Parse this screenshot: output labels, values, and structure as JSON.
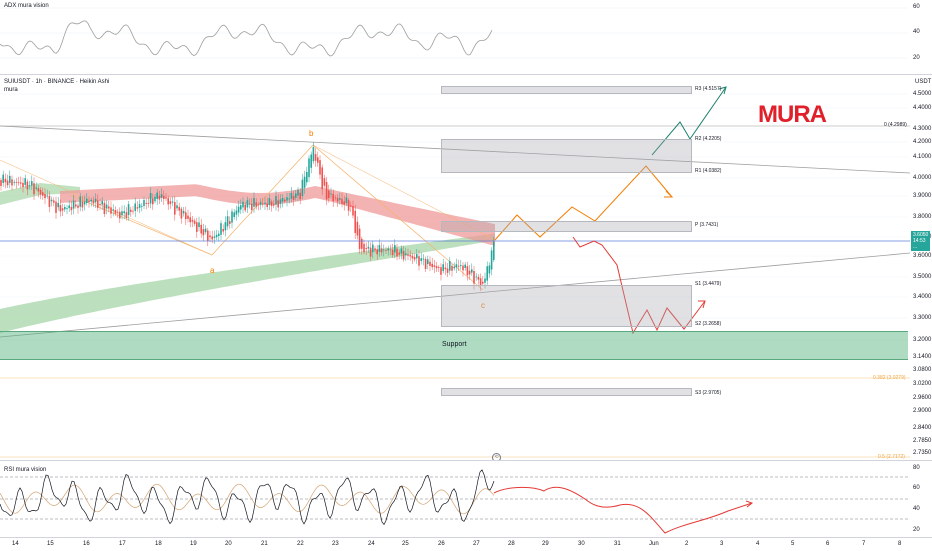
{
  "adx": {
    "label": "ADX mura vision",
    "axis": [
      "60",
      "40",
      "20"
    ]
  },
  "main": {
    "symbol_line": "SUIUSDT · 1h · BINANCE · Heikin Ashi",
    "sub_label": "mura",
    "currency": "USDT",
    "logo_text": "MURA",
    "price_axis": [
      "4.5000",
      "4.4000",
      "4.3000",
      "4.2000",
      "4.1000",
      "4.0000",
      "3.9000",
      "3.8000",
      "3.7000",
      "3.6000",
      "3.5000",
      "3.4000",
      "3.3000",
      "3.2000",
      "3.1400",
      "3.0800",
      "3.0200",
      "2.9600",
      "2.9000",
      "2.8400",
      "2.7850",
      "2.7350"
    ],
    "last_price_badge": [
      "3.6050",
      "14:53",
      "..."
    ],
    "pivots": [
      {
        "key": "r3",
        "label": "R3 (4.5157)"
      },
      {
        "key": "r2",
        "label": "R2 (4.2205)"
      },
      {
        "key": "r1",
        "label": "R1 (4.0382)"
      },
      {
        "key": "p",
        "label": "P (3.7431)"
      },
      {
        "key": "s1",
        "label": "S1 (3.4479)"
      },
      {
        "key": "s2",
        "label": "S2 (3.2658)"
      },
      {
        "key": "s3",
        "label": "S3 (2.9705)"
      }
    ],
    "fib_levels": [
      "0 (4.2989)",
      "0.382 (3.0279)",
      "0.5 (2.7172)"
    ],
    "support_label": "Support",
    "wave_labels": [
      "a",
      "b",
      "c"
    ]
  },
  "rsi": {
    "label": "RSI mura vision",
    "axis": [
      "80",
      "60",
      "40",
      "20"
    ]
  },
  "time_axis": [
    "14",
    "15",
    "16",
    "17",
    "18",
    "19",
    "20",
    "21",
    "22",
    "23",
    "24",
    "25",
    "26",
    "27",
    "28",
    "29",
    "30",
    "31",
    "Jun",
    "2",
    "3",
    "4",
    "5",
    "6",
    "7",
    "8"
  ],
  "colors": {
    "up": "#26a69a",
    "down": "#ef5350",
    "support": "#4caf78",
    "projection_orange": "#f57c00",
    "projection_red": "#e53935",
    "projection_green": "#1b7f6c",
    "ribbon_red": "#ef9a9a",
    "ribbon_green": "#a5d6a7",
    "price_line": "#5b7fd6",
    "logo": "#e0202a"
  },
  "chart_data": [
    {
      "type": "line",
      "title": "ADX mura vision",
      "y_range": [
        15,
        62
      ],
      "axis_ticks": [
        60,
        40,
        20
      ]
    },
    {
      "type": "candlestick",
      "title": "SUIUSDT · 1h · BINANCE · Heikin Ashi",
      "y_range": [
        2.72,
        4.55
      ],
      "last_price": 3.605,
      "pivots": {
        "R3": 4.5157,
        "R2": 4.2205,
        "R1": 4.0382,
        "P": 3.7431,
        "S1": 3.4479,
        "S2": 3.2658,
        "S3": 2.9705
      },
      "fib": {
        "0": 4.2989,
        "0.382": 3.0279,
        "0.5": 2.7172
      },
      "support_zone": [
        3.11,
        3.26
      ],
      "waves": [
        {
          "label": "a",
          "x": "19.8",
          "price": 3.56
        },
        {
          "label": "b",
          "x": "22.5",
          "price": 4.22
        },
        {
          "label": "c",
          "x": "27.3",
          "price": 3.42
        }
      ]
    },
    {
      "type": "line",
      "title": "RSI mura vision",
      "y_range": [
        15,
        85
      ],
      "axis_ticks": [
        80,
        60,
        40,
        20
      ],
      "dashed_levels": [
        70,
        50,
        30
      ]
    }
  ]
}
